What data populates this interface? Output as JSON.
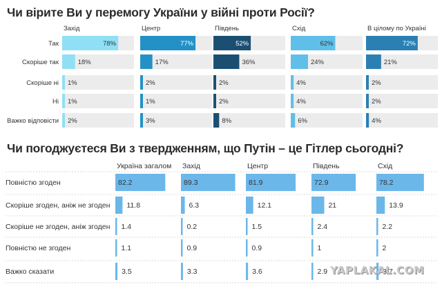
{
  "chart_data": [
    {
      "type": "bar",
      "title": "Чи вірите Ви у перемогу України у війні проти Росії?",
      "panels": [
        "Захід",
        "Центр",
        "Південь",
        "Схід",
        "В цілому по Україні"
      ],
      "categories": [
        "Так",
        "Скоріше так",
        "Скоріше ні",
        "Ні",
        "Важко відповісти"
      ],
      "value_suffix": "%",
      "xlim": [
        0,
        100
      ],
      "panel_colors": [
        "#8fe0f5",
        "#2491c6",
        "#1b4f72",
        "#5fbfe8",
        "#2a80b3"
      ],
      "series": [
        {
          "name": "Захід",
          "values": [
            78,
            18,
            1,
            1,
            2
          ]
        },
        {
          "name": "Центр",
          "values": [
            77,
            17,
            2,
            1,
            3
          ]
        },
        {
          "name": "Південь",
          "values": [
            52,
            36,
            2,
            2,
            8
          ]
        },
        {
          "name": "Схід",
          "values": [
            62,
            24,
            4,
            4,
            6
          ]
        },
        {
          "name": "В цілому по Україні",
          "values": [
            72,
            21,
            2,
            2,
            4
          ]
        }
      ]
    },
    {
      "type": "bar",
      "title": "Чи погоджуєтеся Ви з твердженням, що Путін – це Гітлер сьогодні?",
      "panels": [
        "Україна загалом",
        "Захід",
        "Центр",
        "Південь",
        "Схід"
      ],
      "categories": [
        "Повністю згоден",
        "Скоріше згоден, аніж не згоден",
        "Скоріше не згоден, аніж згоден",
        "Повністю не згоден",
        "Важко сказати"
      ],
      "xlim": [
        0,
        100
      ],
      "bar_color": "#6bb7ea",
      "series": [
        {
          "name": "Україна загалом",
          "values": [
            "82.2",
            "11.8",
            "1.4",
            "1.1",
            "3.5"
          ]
        },
        {
          "name": "Захід",
          "values": [
            "89.3",
            "6.3",
            "0.2",
            "0.9",
            "3.3"
          ]
        },
        {
          "name": "Центр",
          "values": [
            "81.9",
            "12.1",
            "1.5",
            "0.9",
            "3.6"
          ]
        },
        {
          "name": "Південь",
          "values": [
            "72.9",
            "21",
            "2.4",
            "1",
            "2.9"
          ]
        },
        {
          "name": "Схід",
          "values": [
            "78.2",
            "13.9",
            "2.2",
            "2",
            "3.7"
          ]
        }
      ]
    }
  ],
  "watermark": "YAPLAKAL.COM"
}
